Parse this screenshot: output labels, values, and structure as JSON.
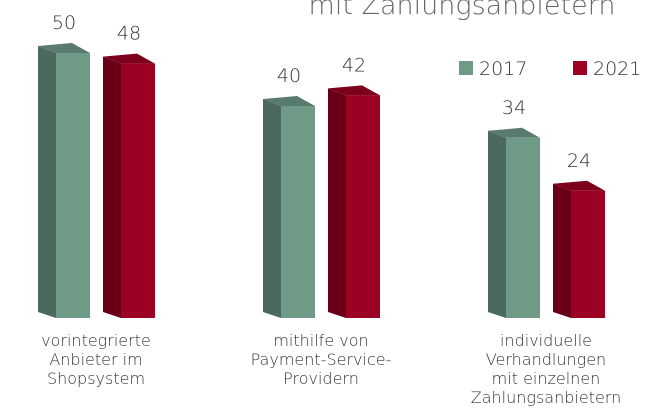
{
  "chart_data": {
    "type": "bar3d",
    "title": "mit Zahlungsanbietern",
    "categories": [
      [
        "vorintegrierte",
        "Anbieter im",
        "Shopsystem"
      ],
      [
        "mithilfe von",
        "Payment-Service-",
        "Providern"
      ],
      [
        "individuelle",
        "Verhandlungen",
        "mit einzelnen",
        "Zahlungsanbietern"
      ]
    ],
    "series": [
      {
        "name": "2017",
        "color": "#6f9a88",
        "values": [
          50,
          40,
          34
        ]
      },
      {
        "name": "2021",
        "color": "#9c0022",
        "values": [
          48,
          42,
          24
        ]
      }
    ]
  }
}
